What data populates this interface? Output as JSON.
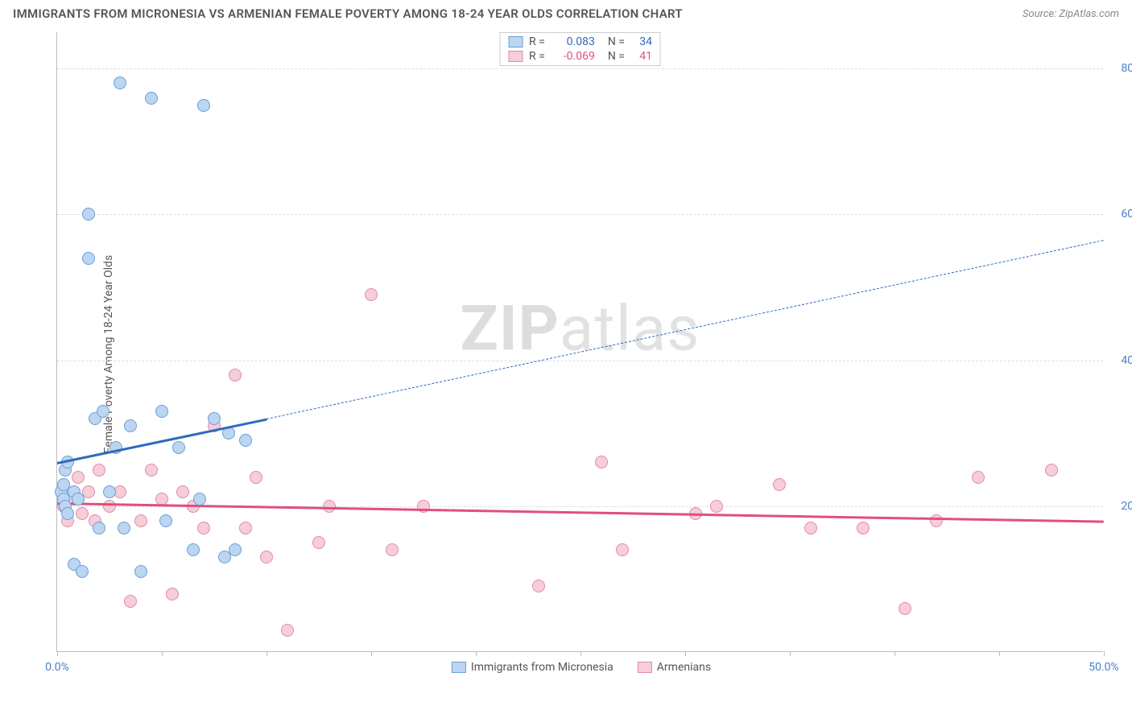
{
  "header": {
    "title": "IMMIGRANTS FROM MICRONESIA VS ARMENIAN FEMALE POVERTY AMONG 18-24 YEAR OLDS CORRELATION CHART",
    "source": "Source: ZipAtlas.com"
  },
  "watermark": {
    "bold": "ZIP",
    "light": "atlas"
  },
  "chart": {
    "type": "scatter",
    "y_axis_label": "Female Poverty Among 18-24 Year Olds",
    "xlim": [
      0,
      50
    ],
    "ylim": [
      0,
      85
    ],
    "x_ticks": [
      0,
      5,
      10,
      15,
      20,
      25,
      30,
      35,
      40,
      45,
      50
    ],
    "x_tick_labels": {
      "0": "0.0%",
      "50": "50.0%"
    },
    "y_ticks": [
      20,
      40,
      60,
      80
    ],
    "y_tick_labels": {
      "20": "20.0%",
      "40": "40.0%",
      "60": "60.0%",
      "80": "80.0%"
    },
    "background_color": "#ffffff",
    "grid_color": "#dddddd",
    "axis_color": "#bbbbbb",
    "axis_label_color": "#4a7ec9",
    "marker_radius": 8,
    "series": {
      "blue": {
        "label": "Immigrants from Micronesia",
        "fill": "#bcd5f0",
        "stroke": "#6a9fd8",
        "trend_color": "#2e6bbd",
        "R": "0.083",
        "N": "34",
        "trend": {
          "x1": 0,
          "y1": 26,
          "x2": 10,
          "y2": 32,
          "x_extend": 50,
          "y_extend": 56.5
        },
        "points": [
          [
            0.2,
            22
          ],
          [
            0.3,
            23
          ],
          [
            0.3,
            21
          ],
          [
            0.4,
            20
          ],
          [
            0.4,
            25
          ],
          [
            0.5,
            26
          ],
          [
            0.5,
            19
          ],
          [
            0.8,
            22
          ],
          [
            0.8,
            12
          ],
          [
            1.0,
            21
          ],
          [
            1.2,
            11
          ],
          [
            1.5,
            54
          ],
          [
            1.5,
            60
          ],
          [
            1.8,
            32
          ],
          [
            2.0,
            17
          ],
          [
            2.2,
            33
          ],
          [
            2.5,
            22
          ],
          [
            2.8,
            28
          ],
          [
            3.0,
            78
          ],
          [
            3.2,
            17
          ],
          [
            3.5,
            31
          ],
          [
            4.0,
            11
          ],
          [
            4.5,
            76
          ],
          [
            5.0,
            33
          ],
          [
            5.2,
            18
          ],
          [
            5.8,
            28
          ],
          [
            6.5,
            14
          ],
          [
            6.8,
            21
          ],
          [
            7.0,
            75
          ],
          [
            7.5,
            32
          ],
          [
            8.0,
            13
          ],
          [
            8.2,
            30
          ],
          [
            8.5,
            14
          ],
          [
            9.0,
            29
          ]
        ]
      },
      "pink": {
        "label": "Armenians",
        "fill": "#f6cdd9",
        "stroke": "#e38ba5",
        "trend_color": "#e04f7c",
        "R": "-0.069",
        "N": "41",
        "trend": {
          "x1": 0,
          "y1": 20.5,
          "x2": 50,
          "y2": 18
        },
        "points": [
          [
            0.3,
            20
          ],
          [
            0.5,
            18
          ],
          [
            0.8,
            21
          ],
          [
            1.0,
            24
          ],
          [
            1.2,
            19
          ],
          [
            1.5,
            22
          ],
          [
            1.8,
            18
          ],
          [
            2.0,
            25
          ],
          [
            2.5,
            20
          ],
          [
            3.0,
            22
          ],
          [
            3.5,
            7
          ],
          [
            4.0,
            18
          ],
          [
            4.5,
            25
          ],
          [
            5.0,
            21
          ],
          [
            5.5,
            8
          ],
          [
            6.0,
            22
          ],
          [
            6.5,
            20
          ],
          [
            7.0,
            17
          ],
          [
            7.5,
            31
          ],
          [
            8.5,
            38
          ],
          [
            9.0,
            17
          ],
          [
            9.5,
            24
          ],
          [
            10.0,
            13
          ],
          [
            11.0,
            3
          ],
          [
            12.5,
            15
          ],
          [
            13.0,
            20
          ],
          [
            15.0,
            49
          ],
          [
            16.0,
            14
          ],
          [
            17.5,
            20
          ],
          [
            23.0,
            9
          ],
          [
            26.0,
            26
          ],
          [
            27.0,
            14
          ],
          [
            30.5,
            19
          ],
          [
            31.5,
            20
          ],
          [
            34.5,
            23
          ],
          [
            36.0,
            17
          ],
          [
            38.5,
            17
          ],
          [
            40.5,
            6
          ],
          [
            42.0,
            18
          ],
          [
            44.0,
            24
          ],
          [
            47.5,
            25
          ]
        ]
      }
    }
  },
  "legend_top": [
    {
      "series": "blue",
      "r_label": "R =",
      "n_label": "N ="
    },
    {
      "series": "pink",
      "r_label": "R =",
      "n_label": "N ="
    }
  ],
  "legend_bottom": [
    {
      "series": "blue"
    },
    {
      "series": "pink"
    }
  ]
}
